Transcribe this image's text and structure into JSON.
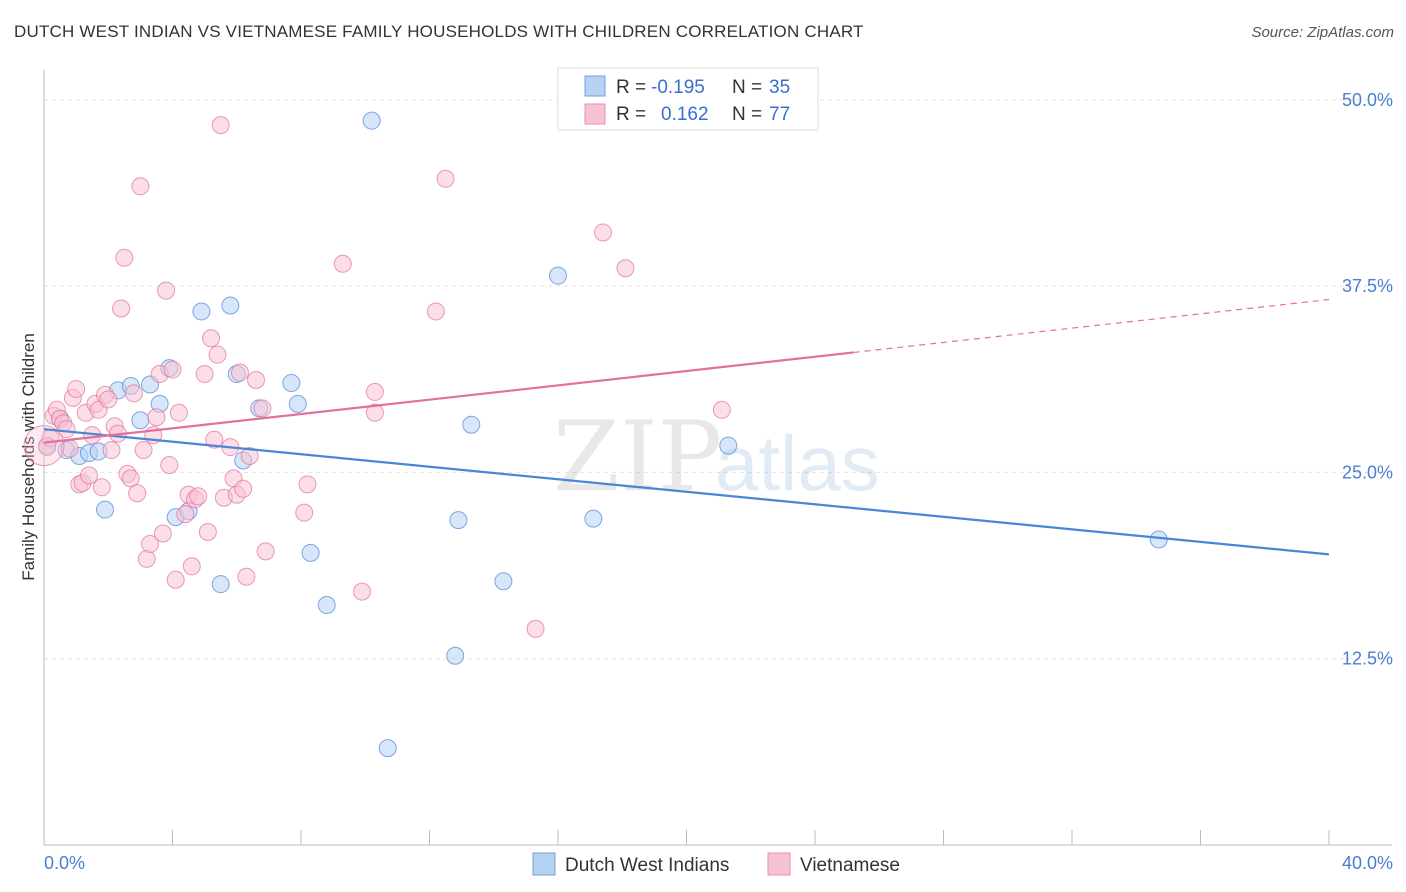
{
  "title": "DUTCH WEST INDIAN VS VIETNAMESE FAMILY HOUSEHOLDS WITH CHILDREN CORRELATION CHART",
  "source": "Source: ZipAtlas.com",
  "watermark": {
    "zip": "ZIP",
    "atlas": "atlas"
  },
  "legend": {
    "rows": [
      {
        "r_label": "R =",
        "r_value": "-0.195",
        "n_label": "N =",
        "n_value": "35",
        "color": "#a9c8f0"
      },
      {
        "r_label": "R =",
        "r_value": "0.162",
        "n_label": "N =",
        "n_value": "77",
        "color": "#f6b6cc"
      }
    ]
  },
  "bottom_legend": [
    "Dutch West Indians",
    "Vietnamese"
  ],
  "chart_data": {
    "type": "scatter",
    "xlabel": "",
    "ylabel": "Family Households with Children",
    "xlim": [
      0,
      40
    ],
    "ylim": [
      0,
      52
    ],
    "x_tick_labels": [
      "0.0%",
      "40.0%"
    ],
    "y_ticks": [
      12.5,
      25.0,
      37.5,
      50.0
    ],
    "y_tick_labels": [
      "12.5%",
      "25.0%",
      "37.5%",
      "50.0%"
    ],
    "grid": true,
    "legend_position": "top-center",
    "series": [
      {
        "name": "Dutch West Indians",
        "color": "#4a86d8",
        "fill": "#b7d1f2",
        "trend": {
          "x": [
            0,
            40
          ],
          "y": [
            27.9,
            19.5
          ],
          "dashed_from": null
        },
        "points": [
          [
            0.1,
            26.8
          ],
          [
            0.5,
            28.6
          ],
          [
            0.7,
            26.5
          ],
          [
            1.1,
            26.1
          ],
          [
            1.4,
            26.3
          ],
          [
            1.7,
            26.4
          ],
          [
            1.9,
            22.5
          ],
          [
            2.3,
            30.5
          ],
          [
            2.7,
            30.8
          ],
          [
            3.0,
            28.5
          ],
          [
            3.3,
            30.9
          ],
          [
            3.6,
            29.6
          ],
          [
            3.9,
            32.0
          ],
          [
            4.1,
            22.0
          ],
          [
            4.5,
            22.4
          ],
          [
            4.9,
            35.8
          ],
          [
            5.5,
            17.5
          ],
          [
            5.8,
            36.2
          ],
          [
            6.0,
            31.6
          ],
          [
            6.2,
            25.8
          ],
          [
            6.7,
            29.3
          ],
          [
            7.7,
            31.0
          ],
          [
            7.9,
            29.6
          ],
          [
            8.3,
            19.6
          ],
          [
            8.8,
            16.1
          ],
          [
            10.2,
            48.6
          ],
          [
            10.7,
            6.5
          ],
          [
            12.8,
            12.7
          ],
          [
            12.9,
            21.8
          ],
          [
            13.3,
            28.2
          ],
          [
            14.3,
            17.7
          ],
          [
            16.0,
            38.2
          ],
          [
            17.1,
            21.9
          ],
          [
            21.3,
            26.8
          ],
          [
            34.7,
            20.5
          ]
        ]
      },
      {
        "name": "Vietnamese",
        "color": "#e3709a",
        "fill": "#f7c3d4",
        "trend": {
          "x": [
            0,
            40
          ],
          "y": [
            27.0,
            36.6
          ],
          "dashed_from": 25.2
        },
        "points": [
          [
            0.1,
            26.7
          ],
          [
            0.2,
            27.3
          ],
          [
            0.3,
            28.8
          ],
          [
            0.4,
            29.2
          ],
          [
            0.5,
            28.6
          ],
          [
            0.6,
            28.3
          ],
          [
            0.7,
            27.9
          ],
          [
            0.8,
            26.6
          ],
          [
            0.9,
            30.0
          ],
          [
            1.0,
            30.6
          ],
          [
            1.1,
            24.2
          ],
          [
            1.2,
            24.3
          ],
          [
            1.3,
            29.0
          ],
          [
            1.4,
            24.8
          ],
          [
            1.5,
            27.5
          ],
          [
            1.6,
            29.6
          ],
          [
            1.7,
            29.2
          ],
          [
            1.8,
            24.0
          ],
          [
            1.9,
            30.2
          ],
          [
            2.0,
            29.9
          ],
          [
            2.1,
            26.5
          ],
          [
            2.2,
            28.1
          ],
          [
            2.3,
            27.6
          ],
          [
            2.4,
            36.0
          ],
          [
            2.5,
            39.4
          ],
          [
            2.6,
            24.9
          ],
          [
            2.7,
            24.6
          ],
          [
            2.8,
            30.3
          ],
          [
            2.9,
            23.6
          ],
          [
            3.0,
            44.2
          ],
          [
            3.1,
            26.5
          ],
          [
            3.2,
            19.2
          ],
          [
            3.3,
            20.2
          ],
          [
            3.4,
            27.5
          ],
          [
            3.5,
            28.7
          ],
          [
            3.6,
            31.6
          ],
          [
            3.7,
            20.9
          ],
          [
            3.8,
            37.2
          ],
          [
            3.9,
            25.5
          ],
          [
            4.0,
            31.9
          ],
          [
            4.1,
            17.8
          ],
          [
            4.2,
            29.0
          ],
          [
            4.4,
            22.2
          ],
          [
            4.5,
            23.5
          ],
          [
            4.6,
            18.7
          ],
          [
            4.7,
            23.2
          ],
          [
            4.8,
            23.4
          ],
          [
            5.0,
            31.6
          ],
          [
            5.1,
            21.0
          ],
          [
            5.2,
            34.0
          ],
          [
            5.3,
            27.2
          ],
          [
            5.4,
            32.9
          ],
          [
            5.5,
            48.3
          ],
          [
            5.6,
            23.3
          ],
          [
            5.8,
            26.7
          ],
          [
            5.9,
            24.6
          ],
          [
            6.0,
            23.5
          ],
          [
            6.1,
            31.7
          ],
          [
            6.2,
            23.9
          ],
          [
            6.3,
            18.0
          ],
          [
            6.4,
            26.1
          ],
          [
            6.6,
            31.2
          ],
          [
            6.8,
            29.3
          ],
          [
            6.9,
            19.7
          ],
          [
            8.1,
            22.3
          ],
          [
            8.2,
            24.2
          ],
          [
            9.3,
            39.0
          ],
          [
            9.9,
            17.0
          ],
          [
            10.3,
            29.0
          ],
          [
            10.3,
            30.4
          ],
          [
            12.2,
            35.8
          ],
          [
            12.5,
            44.7
          ],
          [
            15.3,
            14.5
          ],
          [
            17.4,
            41.1
          ],
          [
            18.1,
            38.7
          ],
          [
            21.1,
            29.2
          ],
          [
            0.0,
            26.8
          ]
        ]
      }
    ]
  }
}
